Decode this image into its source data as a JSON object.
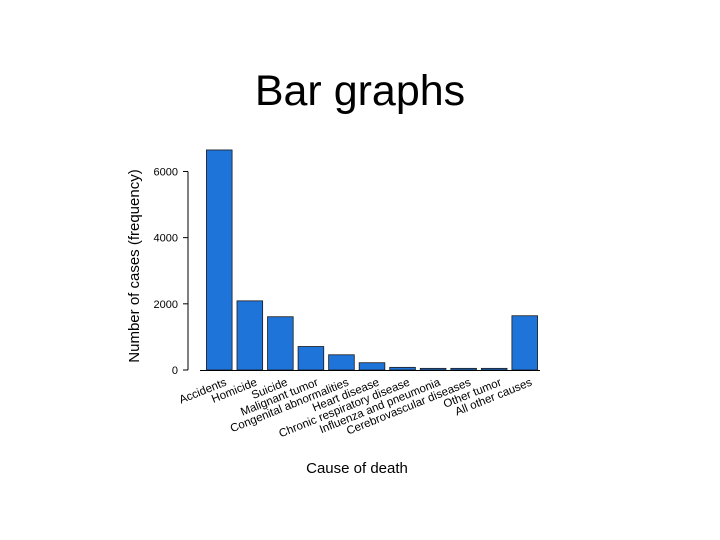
{
  "slide": {
    "title": "Bar graphs"
  },
  "chart_data": {
    "type": "bar",
    "title": "",
    "xlabel": "Cause of death",
    "ylabel": "Number of cases (frequency)",
    "ylim": [
      0,
      6800
    ],
    "yticks": [
      0,
      2000,
      4000,
      6000
    ],
    "ytick_labels": [
      "0",
      "2000",
      "4000",
      "6000"
    ],
    "categories": [
      "Accidents",
      "Homicide",
      "Suicide",
      "Malignant tumor",
      "Congenital abnormalities",
      "Heart disease",
      "Chronic respiratory disease",
      "Influenza and pneumonia",
      "Cerebrovascular diseases",
      "Other tumor",
      "All other causes"
    ],
    "values": [
      6650,
      2090,
      1610,
      710,
      460,
      220,
      80,
      50,
      50,
      50,
      1640
    ],
    "grid": false,
    "legend": "none",
    "colors": {
      "bar_fill": "#1f74d9",
      "bar_stroke": "#1a1a1a",
      "axis": "#000000",
      "text": "#000000"
    }
  }
}
